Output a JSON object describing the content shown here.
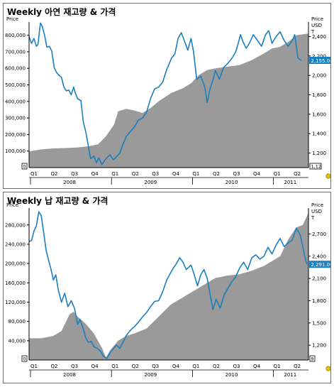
{
  "colors": {
    "inventory": "#9a9a9a",
    "price": "#1a7fbf",
    "price_tag_bg": "#1a7fbf",
    "axis": "#000000"
  },
  "chart_data": [
    {
      "type": "area",
      "title": "Weekly 아연 재고량 & 가격",
      "left_axis": {
        "label": "Price",
        "ticks": [
          "800,000",
          "700,000",
          "600,000",
          "500,000",
          "400,000",
          "300,000",
          "200,000",
          "100,000"
        ],
        "ylim": [
          0,
          880000
        ],
        "min_marker": "0"
      },
      "right_axis": {
        "label_lines": [
          "Price",
          "USD",
          "T"
        ],
        "ticks": [
          "2,400",
          "2,200",
          "2,000",
          "1,800",
          "1,600",
          "1,400",
          "1,200"
        ],
        "ylim": [
          1050,
          2550
        ],
        "min_marker": "1,12",
        "last_value_label": "2,155.00"
      },
      "x_axis": {
        "quarters": [
          "Q1",
          "Q2",
          "Q3",
          "Q4",
          "Q1",
          "Q2",
          "Q3",
          "Q4",
          "Q1",
          "Q2",
          "Q3",
          "Q4",
          "Q1",
          "Q2"
        ],
        "years": [
          "2008",
          "2009",
          "2010",
          "2011"
        ],
        "xlim": [
          2008.0,
          2011.45
        ]
      },
      "series": [
        {
          "kind": "area",
          "axis": "left",
          "points": [
            [
              2008.0,
              98000
            ],
            [
              2008.15,
              110000
            ],
            [
              2008.3,
              116000
            ],
            [
              2008.45,
              118000
            ],
            [
              2008.6,
              122000
            ],
            [
              2008.75,
              130000
            ],
            [
              2008.85,
              140000
            ],
            [
              2008.95,
              190000
            ],
            [
              2009.05,
              260000
            ],
            [
              2009.1,
              340000
            ],
            [
              2009.2,
              355000
            ],
            [
              2009.3,
              345000
            ],
            [
              2009.4,
              330000
            ],
            [
              2009.5,
              360000
            ],
            [
              2009.6,
              400000
            ],
            [
              2009.75,
              450000
            ],
            [
              2009.9,
              480000
            ],
            [
              2010.0,
              510000
            ],
            [
              2010.1,
              560000
            ],
            [
              2010.2,
              590000
            ],
            [
              2010.3,
              600000
            ],
            [
              2010.45,
              610000
            ],
            [
              2010.6,
              620000
            ],
            [
              2010.75,
              650000
            ],
            [
              2010.9,
              690000
            ],
            [
              2011.0,
              720000
            ],
            [
              2011.1,
              730000
            ],
            [
              2011.2,
              760000
            ],
            [
              2011.3,
              800000
            ],
            [
              2011.45,
              810000
            ]
          ]
        },
        {
          "kind": "line",
          "axis": "right",
          "points": [
            [
              2008.0,
              2400
            ],
            [
              2008.03,
              2330
            ],
            [
              2008.06,
              2380
            ],
            [
              2008.09,
              2300
            ],
            [
              2008.11,
              2320
            ],
            [
              2008.14,
              2540
            ],
            [
              2008.16,
              2510
            ],
            [
              2008.19,
              2420
            ],
            [
              2008.22,
              2290
            ],
            [
              2008.25,
              2300
            ],
            [
              2008.28,
              2250
            ],
            [
              2008.31,
              2080
            ],
            [
              2008.34,
              2030
            ],
            [
              2008.37,
              2000
            ],
            [
              2008.4,
              1980
            ],
            [
              2008.43,
              1880
            ],
            [
              2008.46,
              1840
            ],
            [
              2008.49,
              1850
            ],
            [
              2008.52,
              1800
            ],
            [
              2008.55,
              1880
            ],
            [
              2008.57,
              1820
            ],
            [
              2008.6,
              1760
            ],
            [
              2008.64,
              1740
            ],
            [
              2008.67,
              1520
            ],
            [
              2008.7,
              1420
            ],
            [
              2008.73,
              1280
            ],
            [
              2008.76,
              1140
            ],
            [
              2008.8,
              1170
            ],
            [
              2008.83,
              1100
            ],
            [
              2008.86,
              1150
            ],
            [
              2008.9,
              1080
            ],
            [
              2008.93,
              1120
            ],
            [
              2008.97,
              1160
            ],
            [
              2009.0,
              1180
            ],
            [
              2009.04,
              1130
            ],
            [
              2009.08,
              1160
            ],
            [
              2009.12,
              1200
            ],
            [
              2009.16,
              1290
            ],
            [
              2009.2,
              1370
            ],
            [
              2009.25,
              1420
            ],
            [
              2009.3,
              1470
            ],
            [
              2009.35,
              1540
            ],
            [
              2009.4,
              1560
            ],
            [
              2009.45,
              1620
            ],
            [
              2009.5,
              1760
            ],
            [
              2009.55,
              1860
            ],
            [
              2009.6,
              1880
            ],
            [
              2009.65,
              1930
            ],
            [
              2009.7,
              2060
            ],
            [
              2009.73,
              2120
            ],
            [
              2009.76,
              2180
            ],
            [
              2009.8,
              2220
            ],
            [
              2009.84,
              2380
            ],
            [
              2009.88,
              2440
            ],
            [
              2009.92,
              2350
            ],
            [
              2009.96,
              2260
            ],
            [
              2010.0,
              2380
            ],
            [
              2010.03,
              2250
            ],
            [
              2010.07,
              1960
            ],
            [
              2010.12,
              1990
            ],
            [
              2010.17,
              1880
            ],
            [
              2010.2,
              1720
            ],
            [
              2010.23,
              1850
            ],
            [
              2010.27,
              1950
            ],
            [
              2010.3,
              2050
            ],
            [
              2010.35,
              1960
            ],
            [
              2010.4,
              2080
            ],
            [
              2010.45,
              2120
            ],
            [
              2010.5,
              2170
            ],
            [
              2010.55,
              2240
            ],
            [
              2010.58,
              2320
            ],
            [
              2010.61,
              2420
            ],
            [
              2010.64,
              2350
            ],
            [
              2010.68,
              2280
            ],
            [
              2010.72,
              2330
            ],
            [
              2010.77,
              2420
            ],
            [
              2010.82,
              2360
            ],
            [
              2010.87,
              2300
            ],
            [
              2010.92,
              2420
            ],
            [
              2010.96,
              2460
            ],
            [
              2011.0,
              2330
            ],
            [
              2011.05,
              2400
            ],
            [
              2011.1,
              2450
            ],
            [
              2011.15,
              2360
            ],
            [
              2011.2,
              2300
            ],
            [
              2011.25,
              2360
            ],
            [
              2011.28,
              2420
            ],
            [
              2011.32,
              2180
            ],
            [
              2011.36,
              2155
            ]
          ]
        }
      ]
    },
    {
      "type": "area",
      "title": "Weekly 납 재고량 & 가격",
      "left_axis": {
        "label": "Price",
        "ticks": [
          "280,000",
          "240,000",
          "200,000",
          "160,000",
          "120,000",
          "80,000",
          "40,000"
        ],
        "ylim": [
          0,
          315000
        ],
        "min_marker": "0"
      },
      "right_axis": {
        "label_lines": [
          "Price",
          "USD",
          "T"
        ],
        "ticks": [
          "2,700",
          "2,400",
          "2,100",
          "1,800",
          "1,500",
          "1,200"
        ],
        "ylim": [
          1000,
          3050
        ],
        "min_marker": "9"
      },
      "price_tag": "2,291.00",
      "x_axis": {
        "quarters": [
          "Q1",
          "Q2",
          "Q3",
          "Q4",
          "Q1",
          "Q2",
          "Q3",
          "Q4",
          "Q1",
          "Q2",
          "Q3",
          "Q4",
          "Q1",
          "Q2"
        ],
        "years": [
          "2008",
          "2009",
          "2010",
          "2011"
        ],
        "xlim": [
          2008.0,
          2011.45
        ]
      },
      "series": [
        {
          "kind": "area",
          "axis": "left",
          "points": [
            [
              2008.0,
              45000
            ],
            [
              2008.15,
              45000
            ],
            [
              2008.3,
              50000
            ],
            [
              2008.4,
              60000
            ],
            [
              2008.5,
              95000
            ],
            [
              2008.55,
              100000
            ],
            [
              2008.6,
              90000
            ],
            [
              2008.7,
              75000
            ],
            [
              2008.8,
              55000
            ],
            [
              2008.9,
              25000
            ],
            [
              2008.95,
              5000
            ],
            [
              2009.0,
              20000
            ],
            [
              2009.1,
              40000
            ],
            [
              2009.2,
              50000
            ],
            [
              2009.3,
              55000
            ],
            [
              2009.45,
              65000
            ],
            [
              2009.6,
              90000
            ],
            [
              2009.75,
              115000
            ],
            [
              2009.9,
              130000
            ],
            [
              2010.0,
              140000
            ],
            [
              2010.1,
              150000
            ],
            [
              2010.2,
              160000
            ],
            [
              2010.3,
              170000
            ],
            [
              2010.45,
              175000
            ],
            [
              2010.6,
              178000
            ],
            [
              2010.75,
              185000
            ],
            [
              2010.9,
              195000
            ],
            [
              2011.0,
              205000
            ],
            [
              2011.1,
              215000
            ],
            [
              2011.2,
              250000
            ],
            [
              2011.3,
              275000
            ],
            [
              2011.38,
              280000
            ],
            [
              2011.45,
              305000
            ]
          ]
        },
        {
          "kind": "line",
          "axis": "right",
          "points": [
            [
              2008.0,
              2600
            ],
            [
              2008.03,
              2610
            ],
            [
              2008.06,
              2740
            ],
            [
              2008.09,
              2810
            ],
            [
              2008.12,
              3000
            ],
            [
              2008.15,
              2950
            ],
            [
              2008.18,
              2720
            ],
            [
              2008.21,
              2480
            ],
            [
              2008.24,
              2350
            ],
            [
              2008.27,
              2230
            ],
            [
              2008.3,
              2080
            ],
            [
              2008.33,
              2150
            ],
            [
              2008.36,
              1950
            ],
            [
              2008.4,
              1780
            ],
            [
              2008.44,
              1900
            ],
            [
              2008.48,
              1720
            ],
            [
              2008.52,
              1800
            ],
            [
              2008.56,
              1700
            ],
            [
              2008.6,
              1480
            ],
            [
              2008.63,
              1550
            ],
            [
              2008.67,
              1420
            ],
            [
              2008.7,
              1300
            ],
            [
              2008.73,
              1240
            ],
            [
              2008.77,
              1250
            ],
            [
              2008.8,
              1180
            ],
            [
              2008.84,
              1160
            ],
            [
              2008.88,
              1120
            ],
            [
              2008.92,
              1050
            ],
            [
              2008.96,
              1020
            ],
            [
              2009.0,
              1100
            ],
            [
              2009.04,
              1150
            ],
            [
              2009.08,
              1200
            ],
            [
              2009.12,
              1160
            ],
            [
              2009.16,
              1240
            ],
            [
              2009.2,
              1330
            ],
            [
              2009.25,
              1400
            ],
            [
              2009.3,
              1450
            ],
            [
              2009.35,
              1510
            ],
            [
              2009.4,
              1580
            ],
            [
              2009.45,
              1640
            ],
            [
              2009.5,
              1720
            ],
            [
              2009.55,
              1790
            ],
            [
              2009.6,
              1800
            ],
            [
              2009.65,
              1920
            ],
            [
              2009.7,
              2080
            ],
            [
              2009.74,
              2160
            ],
            [
              2009.78,
              2240
            ],
            [
              2009.82,
              2300
            ],
            [
              2009.86,
              2380
            ],
            [
              2009.9,
              2320
            ],
            [
              2009.94,
              2220
            ],
            [
              2010.0,
              2280
            ],
            [
              2010.04,
              2150
            ],
            [
              2010.08,
              2000
            ],
            [
              2010.12,
              2150
            ],
            [
              2010.16,
              2220
            ],
            [
              2010.2,
              2100
            ],
            [
              2010.24,
              1860
            ],
            [
              2010.27,
              1680
            ],
            [
              2010.31,
              1820
            ],
            [
              2010.36,
              1700
            ],
            [
              2010.41,
              1880
            ],
            [
              2010.45,
              1960
            ],
            [
              2010.5,
              2050
            ],
            [
              2010.55,
              2120
            ],
            [
              2010.6,
              2240
            ],
            [
              2010.65,
              2320
            ],
            [
              2010.7,
              2220
            ],
            [
              2010.75,
              2380
            ],
            [
              2010.8,
              2420
            ],
            [
              2010.85,
              2360
            ],
            [
              2010.9,
              2400
            ],
            [
              2010.95,
              2520
            ],
            [
              2011.0,
              2430
            ],
            [
              2011.05,
              2550
            ],
            [
              2011.1,
              2640
            ],
            [
              2011.15,
              2530
            ],
            [
              2011.2,
              2580
            ],
            [
              2011.25,
              2620
            ],
            [
              2011.3,
              2780
            ],
            [
              2011.35,
              2680
            ],
            [
              2011.4,
              2420
            ],
            [
              2011.43,
              2291
            ]
          ]
        }
      ]
    }
  ]
}
